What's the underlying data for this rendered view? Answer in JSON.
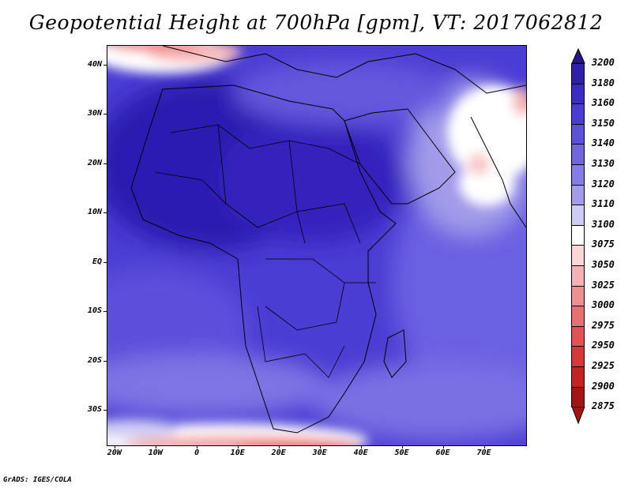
{
  "title": "Geopotential Height at 700hPa [gpm], VT: 2017062812",
  "footer": "GrADS: IGES/COLA",
  "map": {
    "lat_labels": [
      "40N",
      "30N",
      "20N",
      "10N",
      "EQ",
      "10S",
      "20S",
      "30S"
    ],
    "lon_labels": [
      "20W",
      "10W",
      "0",
      "10E",
      "20E",
      "30E",
      "40E",
      "50E",
      "60E",
      "70E"
    ],
    "lat_values": [
      40,
      30,
      20,
      10,
      0,
      -10,
      -20,
      -30
    ],
    "lon_values": [
      -20,
      -10,
      0,
      10,
      20,
      30,
      40,
      50,
      60,
      70
    ],
    "lon_range": [
      -22,
      80
    ],
    "lat_range": [
      -37,
      44
    ]
  },
  "colorbar": {
    "levels": [
      "3200",
      "3180",
      "3160",
      "3150",
      "3140",
      "3130",
      "3120",
      "3110",
      "3100",
      "3075",
      "3050",
      "3025",
      "3000",
      "2975",
      "2950",
      "2925",
      "2900",
      "2875"
    ],
    "colors": [
      "#241688",
      "#2f1fa9",
      "#3b2cc4",
      "#4b3dd2",
      "#5d51d9",
      "#7065df",
      "#857ce4",
      "#a39de9",
      "#cfccf3",
      "#ffffff",
      "#fcd6d6",
      "#f5b2b2",
      "#ef9090",
      "#e87070",
      "#e25252",
      "#d93838",
      "#c42323",
      "#a31515"
    ]
  }
}
